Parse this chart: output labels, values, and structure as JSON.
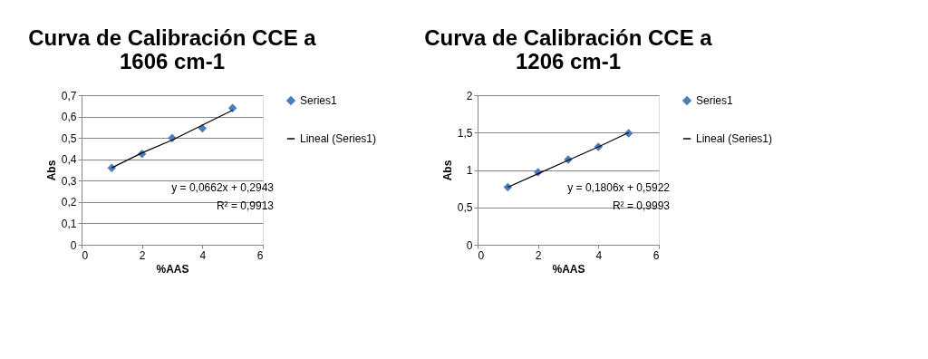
{
  "chart_data": [
    {
      "type": "scatter",
      "title": "Curva de Calibración CCE a 1606 cm-1",
      "xlabel": "%AAS",
      "ylabel": "Abs",
      "x": [
        1,
        2,
        3,
        4,
        5
      ],
      "series": [
        {
          "name": "Series1",
          "marker": "diamond",
          "color": "#4a7ebb",
          "values": [
            0.36,
            0.425,
            0.5,
            0.545,
            0.64
          ]
        },
        {
          "name": "Lineal (Series1)",
          "type": "line",
          "marker": "none",
          "color": "#000000",
          "values": [
            0.36,
            0.43,
            0.49,
            0.56,
            0.63
          ]
        }
      ],
      "xlim": [
        0,
        6
      ],
      "xticks": [
        0,
        2,
        4,
        6
      ],
      "ylim": [
        0,
        0.7
      ],
      "yticks": [
        0,
        {
          "value": 0.1,
          "label": "0,1"
        },
        {
          "value": 0.2,
          "label": "0,2"
        },
        {
          "value": 0.3,
          "label": "0,3"
        },
        {
          "value": 0.4,
          "label": "0,4"
        },
        {
          "value": 0.5,
          "label": "0,5"
        },
        {
          "value": 0.6,
          "label": "0,6"
        },
        {
          "value": 0.7,
          "label": "0,7"
        }
      ],
      "annotations": [
        "y = 0,0662x + 0,2943",
        "R² = 0,9913"
      ],
      "grid": "y",
      "legend": "right",
      "line_style": "solid"
    },
    {
      "type": "scatter",
      "title": "Curva de Calibración CCE a 1206 cm-1",
      "xlabel": "%AAS",
      "ylabel": "Abs",
      "x": [
        1,
        2,
        3,
        4,
        5
      ],
      "series": [
        {
          "name": "Series1",
          "marker": "diamond",
          "color": "#4a7ebb",
          "values": [
            0.77,
            0.97,
            1.14,
            1.31,
            1.49
          ]
        },
        {
          "name": "Lineal (Series1)",
          "type": "line",
          "marker": "none",
          "color": "#000000",
          "values": [
            0.77,
            0.95,
            1.13,
            1.31,
            1.5
          ]
        }
      ],
      "xlim": [
        0,
        6
      ],
      "xticks": [
        0,
        2,
        4,
        6
      ],
      "ylim": [
        0,
        2
      ],
      "yticks": [
        0,
        {
          "value": 0.5,
          "label": "0,5"
        },
        1,
        {
          "value": 1.5,
          "label": "1,5"
        },
        2
      ],
      "annotations": [
        "y = 0,1806x + 0,5922",
        "R² = 0,9993"
      ],
      "grid": "y",
      "legend": "right",
      "line_style": "solid"
    }
  ]
}
